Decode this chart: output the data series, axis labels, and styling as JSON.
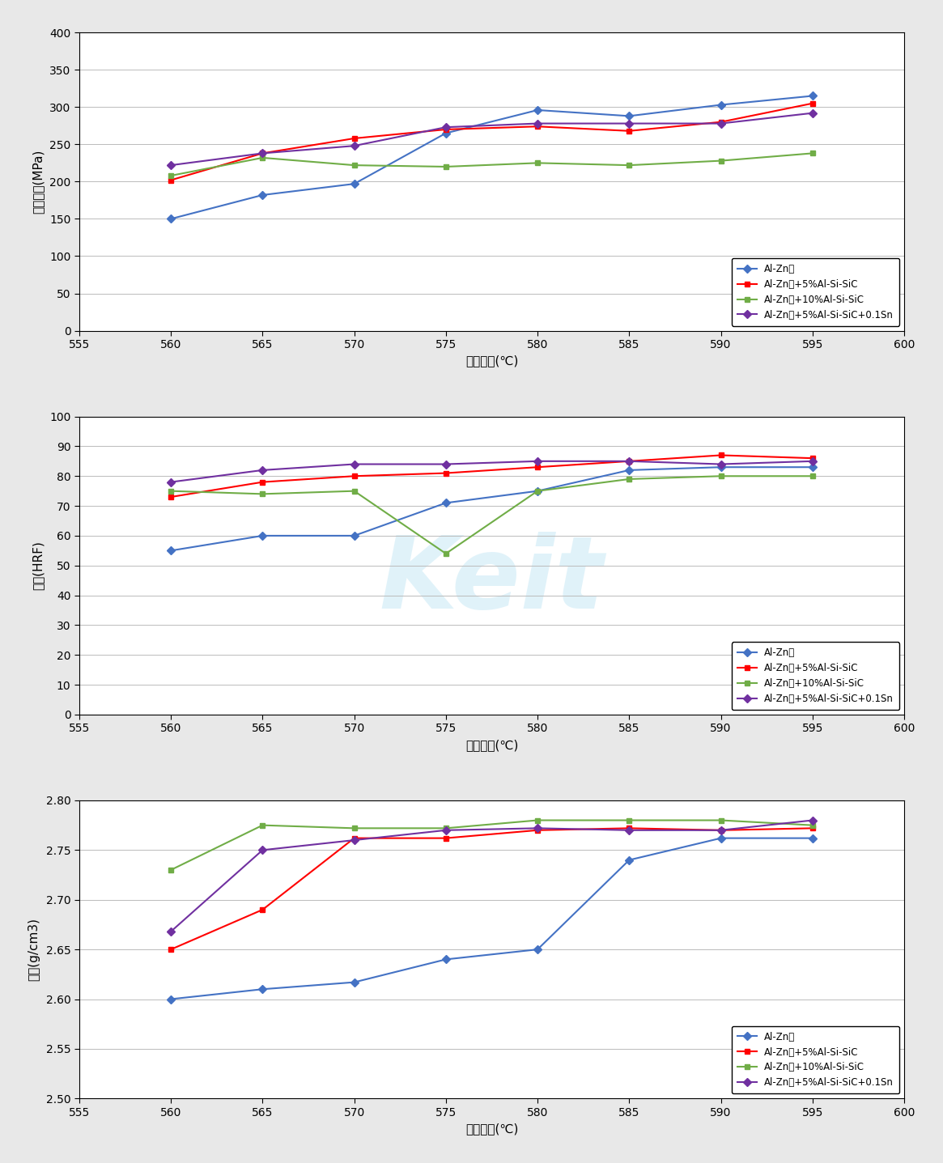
{
  "x": [
    560,
    565,
    570,
    575,
    580,
    585,
    590,
    595
  ],
  "chart1": {
    "ylabel": "인장강도(MPa)",
    "xlabel": "소결온도(℃)",
    "ylim": [
      0,
      400
    ],
    "yticks": [
      0,
      50,
      100,
      150,
      200,
      250,
      300,
      350,
      400
    ],
    "series": {
      "Al-Zn계": {
        "color": "#4472C4",
        "marker": "D",
        "values": [
          150,
          182,
          197,
          265,
          296,
          288,
          303,
          315
        ]
      },
      "Al-Zn계+5%Al-Si-SiC": {
        "color": "#FF0000",
        "marker": "s",
        "values": [
          202,
          238,
          258,
          270,
          274,
          268,
          280,
          305
        ]
      },
      "Al-Zn계+10%Al-Si-SiC": {
        "color": "#70AD47",
        "marker": "s",
        "values": [
          208,
          232,
          222,
          220,
          225,
          222,
          228,
          238
        ]
      },
      "Al-Zn계+5%Al-Si-SiC+0.1Sn": {
        "color": "#7030A0",
        "marker": "D",
        "values": [
          222,
          238,
          248,
          273,
          278,
          278,
          278,
          292
        ]
      }
    },
    "legend_loc": "lower right"
  },
  "chart2": {
    "ylabel": "경도(HRF)",
    "xlabel": "소결온도(℃)",
    "ylim": [
      0,
      100
    ],
    "yticks": [
      0,
      10,
      20,
      30,
      40,
      50,
      60,
      70,
      80,
      90,
      100
    ],
    "series": {
      "Al-Zn계": {
        "color": "#4472C4",
        "marker": "D",
        "values": [
          55,
          60,
          60,
          71,
          75,
          82,
          83,
          83
        ]
      },
      "Al-Zn계+5%Al-Si-SiC": {
        "color": "#FF0000",
        "marker": "s",
        "values": [
          73,
          78,
          80,
          81,
          83,
          85,
          87,
          86
        ]
      },
      "Al-Zn계+10%Al-Si-SiC": {
        "color": "#70AD47",
        "marker": "s",
        "values": [
          75,
          74,
          75,
          54,
          75,
          79,
          80,
          80
        ]
      },
      "Al-Zn계+5%Al-Si-SiC+0.1Sn": {
        "color": "#7030A0",
        "marker": "D",
        "values": [
          78,
          82,
          84,
          84,
          85,
          85,
          84,
          85
        ]
      }
    },
    "legend_loc": "lower right"
  },
  "chart3": {
    "ylabel": "밀도(g/cm3)",
    "xlabel": "소결온도(℃)",
    "ylim": [
      2.5,
      2.8
    ],
    "yticks": [
      2.5,
      2.55,
      2.6,
      2.65,
      2.7,
      2.75,
      2.8
    ],
    "series": {
      "Al-Zn계": {
        "color": "#4472C4",
        "marker": "D",
        "values": [
          2.6,
          2.61,
          2.617,
          2.64,
          2.65,
          2.74,
          2.762,
          2.762
        ]
      },
      "Al-Zn계+5%Al-Si-SiC": {
        "color": "#FF0000",
        "marker": "s",
        "values": [
          2.65,
          2.69,
          2.762,
          2.762,
          2.77,
          2.772,
          2.77,
          2.772
        ]
      },
      "Al-Zn계+10%Al-Si-SiC": {
        "color": "#70AD47",
        "marker": "s",
        "values": [
          2.73,
          2.775,
          2.772,
          2.772,
          2.78,
          2.78,
          2.78,
          2.775
        ]
      },
      "Al-Zn계+5%Al-Si-SiC+0.1Sn": {
        "color": "#7030A0",
        "marker": "D",
        "values": [
          2.668,
          2.75,
          2.76,
          2.77,
          2.772,
          2.77,
          2.77,
          2.78
        ]
      }
    },
    "legend_loc": "lower right"
  },
  "xticks": [
    555,
    560,
    565,
    570,
    575,
    580,
    585,
    590,
    595,
    600
  ],
  "xlim": [
    555,
    600
  ],
  "watermark_text": "Keit",
  "watermark_color": "#87CEEB",
  "watermark_alpha": 0.25,
  "bg_color": "#e8e8e8"
}
